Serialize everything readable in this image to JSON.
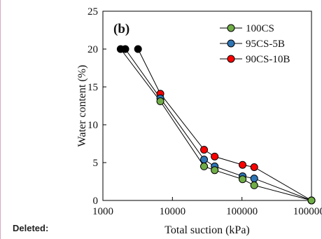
{
  "page": {
    "margin_note": "Deleted:"
  },
  "chart_data": {
    "type": "scatter",
    "panel_label": "(b)",
    "xlabel": "Total suction (kPa)",
    "ylabel": "Water content (%)",
    "xscale": "log",
    "xlim": [
      1000,
      1000000
    ],
    "ylim": [
      0,
      25
    ],
    "x_ticks": [
      1000,
      10000,
      100000,
      1000000
    ],
    "x_tick_labels": [
      "1000",
      "10000",
      "100000",
      "1000000"
    ],
    "y_ticks": [
      0,
      5,
      10,
      15,
      20,
      25
    ],
    "y_tick_labels": [
      "0",
      "5",
      "10",
      "15",
      "20",
      "25"
    ],
    "grid": false,
    "legend_position": "top-right",
    "series": [
      {
        "name": "100CS",
        "color": "#70ad47",
        "x": [
          1800,
          6700,
          28500,
          40500,
          102000,
          150000,
          1000000
        ],
        "y": [
          20,
          13.1,
          4.5,
          4.0,
          2.8,
          2.0,
          0
        ]
      },
      {
        "name": "95CS-5B",
        "color": "#2e75b6",
        "x": [
          2100,
          6700,
          28500,
          40500,
          102000,
          150000,
          1000000
        ],
        "y": [
          20,
          13.5,
          5.4,
          4.5,
          3.2,
          2.9,
          0
        ]
      },
      {
        "name": "90CS-10B",
        "color": "#ff0000",
        "x": [
          3200,
          6700,
          28500,
          40500,
          102000,
          150000,
          1000000
        ],
        "y": [
          20,
          14.1,
          6.7,
          5.8,
          4.7,
          4.4,
          0
        ]
      }
    ],
    "initial_points": {
      "color": "#000000",
      "x": [
        1800,
        2100,
        3200
      ],
      "y": [
        20,
        20,
        20
      ]
    }
  }
}
